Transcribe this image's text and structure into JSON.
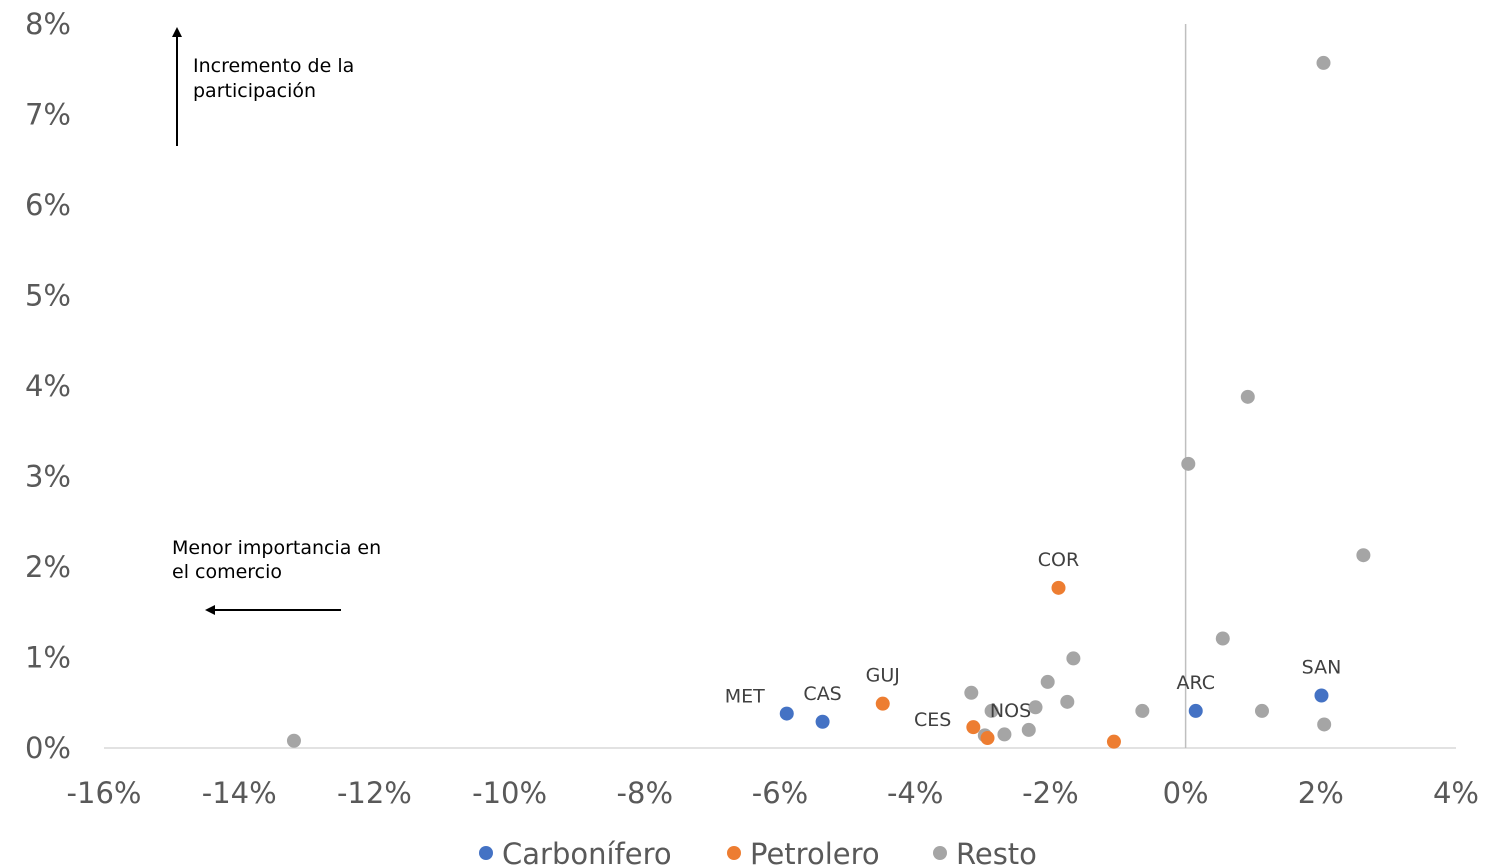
{
  "chart_data": {
    "type": "scatter",
    "xlim": [
      -0.16,
      0.04
    ],
    "ylim": [
      0,
      0.08
    ],
    "x_ticks": [
      {
        "value": -0.16,
        "label": "-16%"
      },
      {
        "value": -0.14,
        "label": "-14%"
      },
      {
        "value": -0.12,
        "label": "-12%"
      },
      {
        "value": -0.1,
        "label": "-10%"
      },
      {
        "value": -0.08,
        "label": "-8%"
      },
      {
        "value": -0.06,
        "label": "-6%"
      },
      {
        "value": -0.04,
        "label": "-4%"
      },
      {
        "value": -0.02,
        "label": "-2%"
      },
      {
        "value": 0.0,
        "label": "0%"
      },
      {
        "value": 0.02,
        "label": "2%"
      },
      {
        "value": 0.04,
        "label": "4%"
      }
    ],
    "y_ticks": [
      {
        "value": 0.0,
        "label": "0%"
      },
      {
        "value": 0.01,
        "label": "1%"
      },
      {
        "value": 0.02,
        "label": "2%"
      },
      {
        "value": 0.03,
        "label": "3%"
      },
      {
        "value": 0.04,
        "label": "4%"
      },
      {
        "value": 0.05,
        "label": "5%"
      },
      {
        "value": 0.06,
        "label": "6%"
      },
      {
        "value": 0.07,
        "label": "7%"
      },
      {
        "value": 0.08,
        "label": "8%"
      }
    ],
    "grid": false,
    "legend_position": "bottom",
    "series": [
      {
        "name": "Carbonífero",
        "color": "#4472C4",
        "points": [
          {
            "x": -0.059,
            "y": 0.0038,
            "label": "MET"
          },
          {
            "x": -0.0537,
            "y": 0.0029,
            "label": "CAS"
          },
          {
            "x": 0.0015,
            "y": 0.0041,
            "label": "ARC"
          },
          {
            "x": 0.0201,
            "y": 0.0058,
            "label": "SAN"
          }
        ]
      },
      {
        "name": "Petrolero",
        "color": "#ED7D31",
        "points": [
          {
            "x": -0.0448,
            "y": 0.0049,
            "label": "GUJ"
          },
          {
            "x": -0.0314,
            "y": 0.0023,
            "label": "CES"
          },
          {
            "x": -0.0293,
            "y": 0.0011,
            "label": "NOS"
          },
          {
            "x": -0.0188,
            "y": 0.0177,
            "label": "COR"
          },
          {
            "x": -0.0106,
            "y": 0.0007,
            "label": ""
          }
        ]
      },
      {
        "name": "Resto",
        "color": "#A5A5A5",
        "points": [
          {
            "x": -0.1319,
            "y": 0.0008
          },
          {
            "x": -0.0317,
            "y": 0.0061
          },
          {
            "x": -0.0297,
            "y": 0.0014
          },
          {
            "x": -0.0287,
            "y": 0.0041
          },
          {
            "x": -0.0268,
            "y": 0.0015
          },
          {
            "x": -0.0232,
            "y": 0.002
          },
          {
            "x": -0.0222,
            "y": 0.0045
          },
          {
            "x": -0.0204,
            "y": 0.0073
          },
          {
            "x": -0.0175,
            "y": 0.0051
          },
          {
            "x": -0.0166,
            "y": 0.0099
          },
          {
            "x": -0.0064,
            "y": 0.0041
          },
          {
            "x": 0.0004,
            "y": 0.0314
          },
          {
            "x": 0.0055,
            "y": 0.0121
          },
          {
            "x": 0.0092,
            "y": 0.0388
          },
          {
            "x": 0.0113,
            "y": 0.0041
          },
          {
            "x": 0.0204,
            "y": 0.0757
          },
          {
            "x": 0.0205,
            "y": 0.0026
          },
          {
            "x": 0.0263,
            "y": 0.0213
          }
        ]
      }
    ],
    "annotations": [
      {
        "lines": [
          "Incremento de la",
          "participación"
        ],
        "arrow": "up"
      },
      {
        "lines": [
          "Menor importancia en",
          "el comercio"
        ],
        "arrow": "left"
      }
    ]
  }
}
